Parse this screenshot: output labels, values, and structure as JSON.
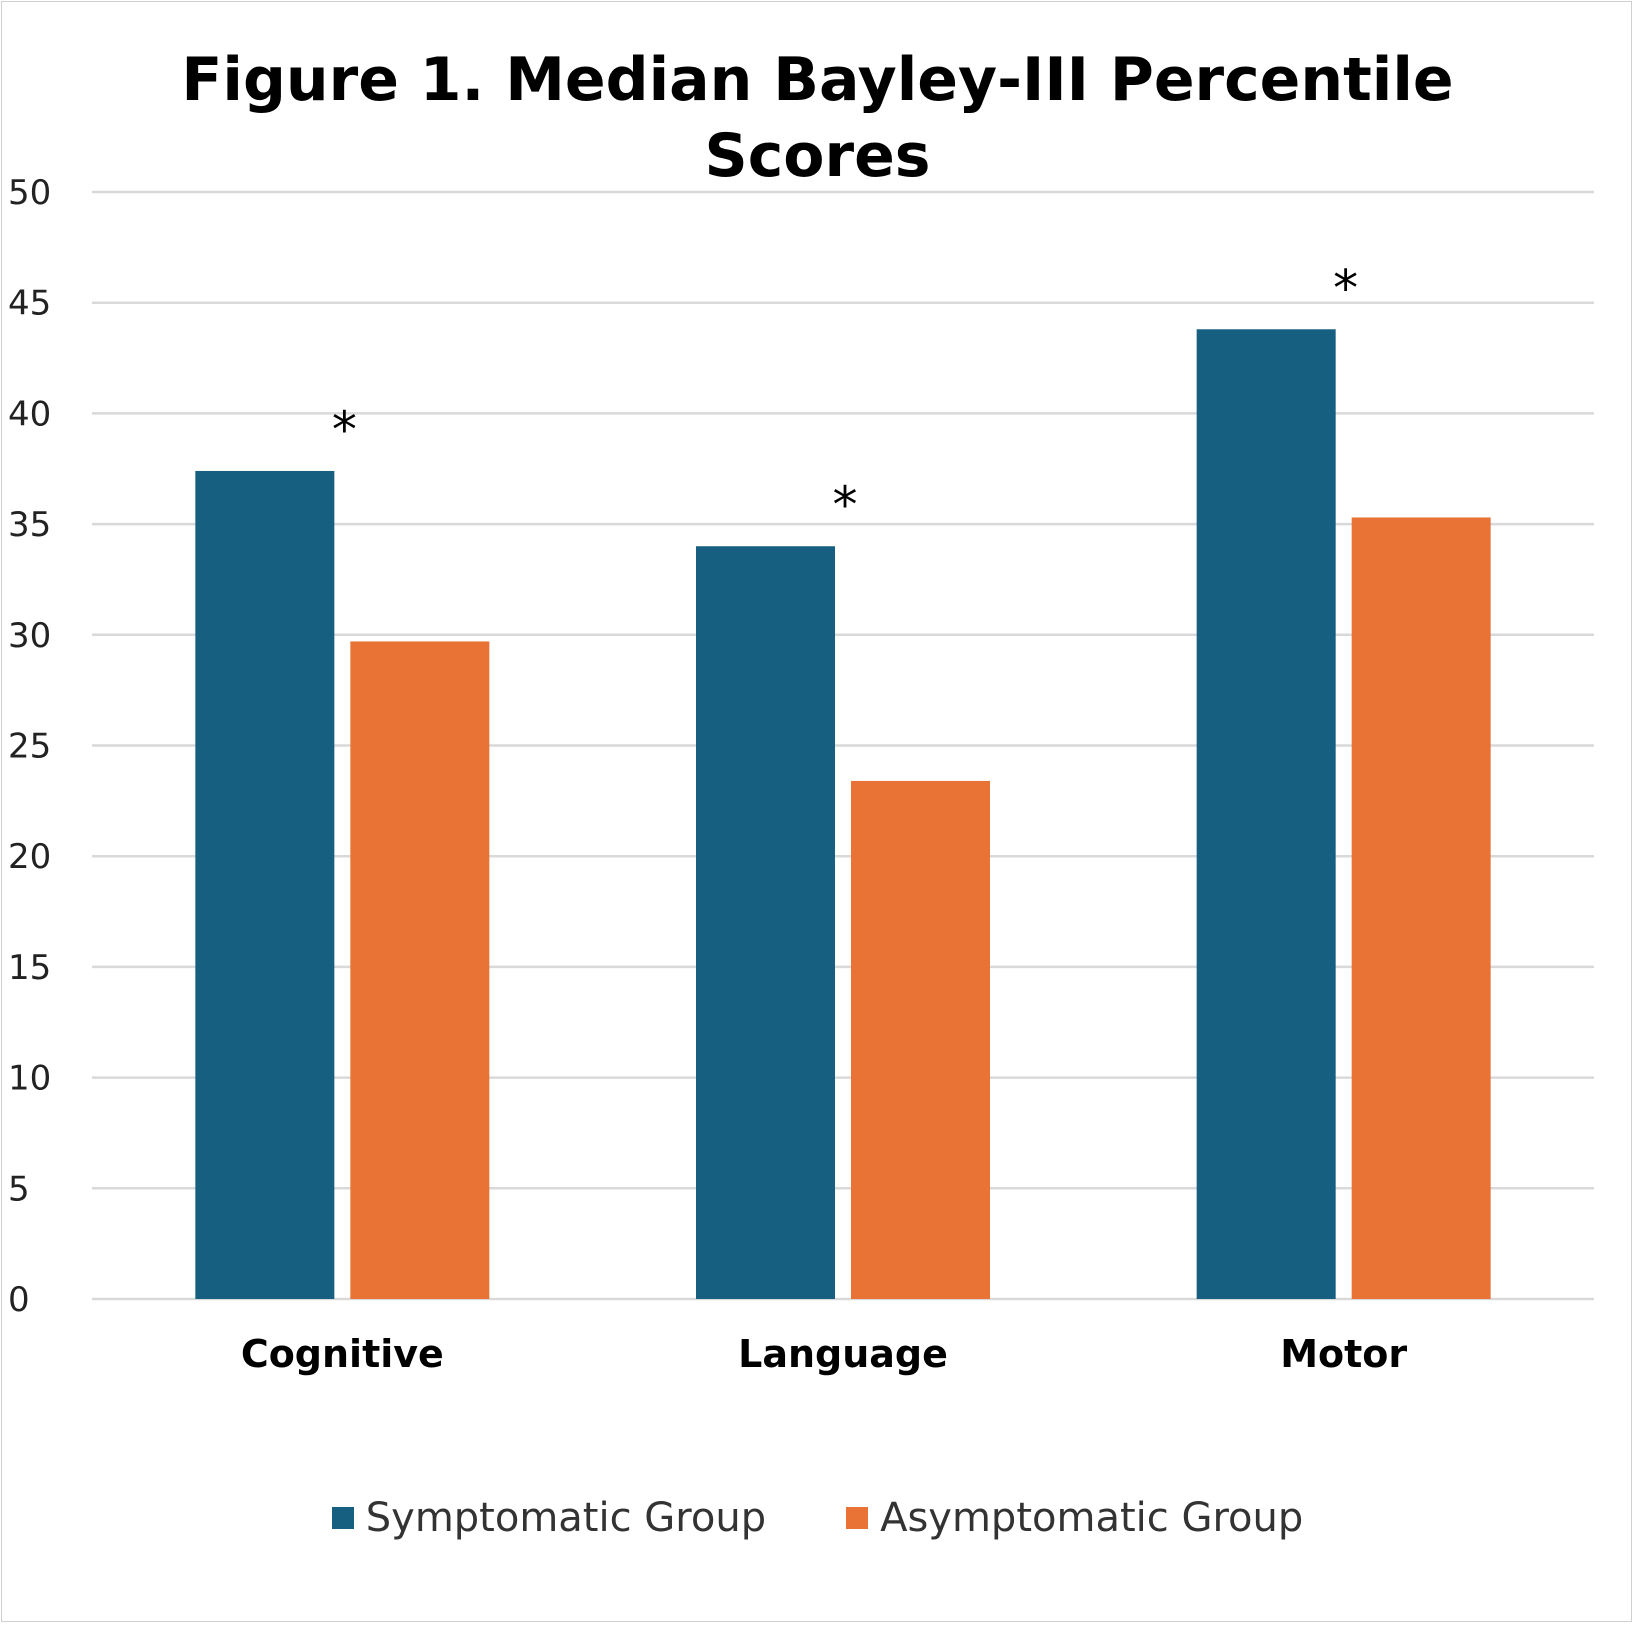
{
  "chart_data": {
    "type": "bar",
    "title_lines": [
      "Figure 1. Median Bayley-III Percentile",
      "Scores"
    ],
    "categories": [
      "Cognitive",
      "Language",
      "Motor"
    ],
    "series": [
      {
        "name": "Symptomatic Group",
        "color": "#175F80",
        "values": [
          37.4,
          34.0,
          43.8
        ]
      },
      {
        "name": "Asymptomatic Group",
        "color": "#E87335",
        "values": [
          29.7,
          23.4,
          35.3
        ]
      }
    ],
    "annotations": [
      "*",
      "*",
      "*"
    ],
    "xlabel": "",
    "ylabel": "",
    "ylim": [
      0,
      50
    ],
    "yticks": [
      0,
      5,
      10,
      15,
      20,
      25,
      30,
      35,
      40,
      45,
      50
    ],
    "grid": true,
    "legend_position": "bottom"
  }
}
